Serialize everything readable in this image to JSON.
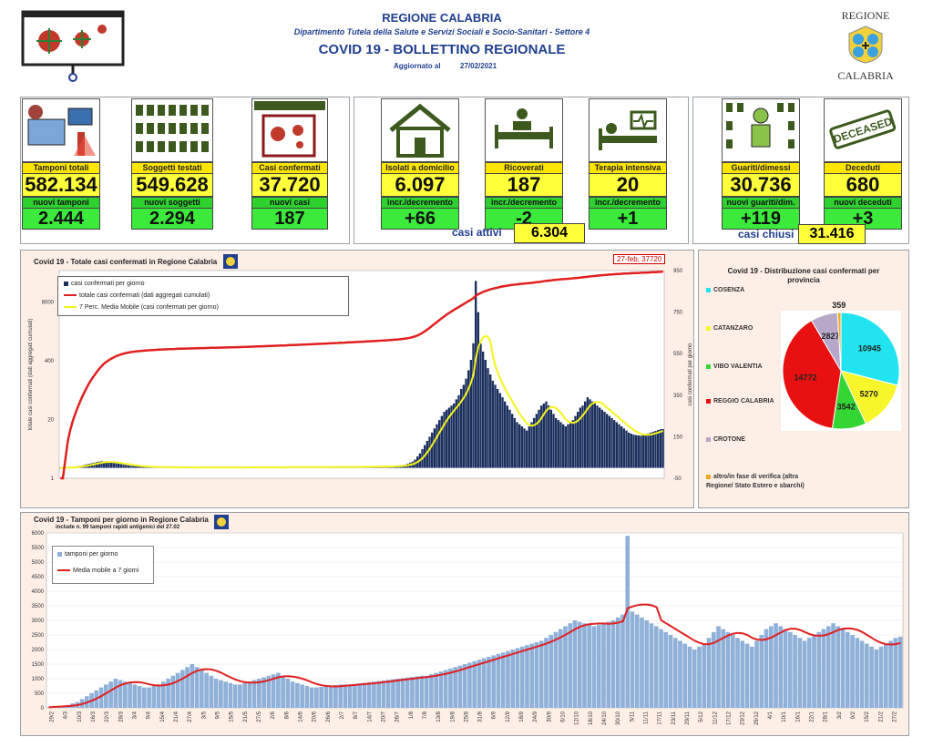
{
  "header": {
    "region": "REGIONE CALABRIA",
    "department": "Dipartimento Tutela della Salute e Servizi Sociali e Socio-Sanitari - Settore 4",
    "bulletin": "COVID 19 - BOLLETTINO REGIONALE",
    "updated_label": "Aggiornato al",
    "updated_date": "27/02/2021",
    "logo_top": "REGIONE",
    "logo_bottom": "CALABRIA"
  },
  "stats": {
    "tamponi": {
      "label": "Tamponi totali",
      "value": "582.134",
      "sub_label": "nuovi tamponi",
      "sub_value": "2.444"
    },
    "soggetti": {
      "label": "Soggetti testati",
      "value": "549.628",
      "sub_label": "nuovi soggetti testati",
      "sub_value": "2.294"
    },
    "casi": {
      "label": "Casi confermati",
      "value": "37.720",
      "sub_label": "nuovi casi",
      "sub_value": "187"
    },
    "isolati": {
      "label": "Isolati a domicilio",
      "value": "6.097",
      "sub_label": "incr./decremento",
      "sub_value": "+66"
    },
    "ricoverati": {
      "label": "Ricoverati",
      "value": "187",
      "sub_label": "incr./decremento",
      "sub_value": "-2"
    },
    "terapia": {
      "label": "Terapia intensiva",
      "value": "20",
      "sub_label": "incr./decremento",
      "sub_value": "+1"
    },
    "guariti": {
      "label": "Guariti/dimessi",
      "value": "30.736",
      "sub_label": "nuovi guariti/dim.",
      "sub_value": "+119"
    },
    "deceduti": {
      "label": "Deceduti",
      "value": "680",
      "sub_label": "nuovi deceduti",
      "sub_value": "+3"
    },
    "casi_attivi_label": "casi attivi",
    "casi_attivi_value": "6.304",
    "casi_chiusi_label": "casi chiusi",
    "casi_chiusi_value": "31.416",
    "deceased_stamp": "DECEASED"
  },
  "colors": {
    "navy": "#1b2f5e",
    "red": "#e02020",
    "yellow": "#f4f41a",
    "bluebar": "#8fb0d8",
    "pie_cosenza": "#22e3f0",
    "pie_catanzaro": "#f6f62a",
    "pie_vibo": "#33d633",
    "pie_reggio": "#e81010",
    "pie_crotone": "#b7a8c9",
    "pie_altro": "#f0a820"
  },
  "chart_data": [
    {
      "type": "bar",
      "title": "Covid 19 - Totale casi confermati in Regione Calabria",
      "annotation": "27-feb; 37720",
      "ylabel_left": "totale casi confermati (dati aggregati cumulati)",
      "ylabel_right": "casi confermati per giorno",
      "yticks_left": [
        "8000",
        "400",
        "20",
        "1"
      ],
      "yticks_right": [
        "950",
        "750",
        "550",
        "350",
        "150",
        "-50"
      ],
      "ylim_right": [
        -50,
        950
      ],
      "ylim_left": [
        1,
        40000
      ],
      "left_scale": "log",
      "series": [
        {
          "name": "casi confermati per giorno",
          "type": "bar"
        },
        {
          "name": "totale casi confermati (dati aggregati cumulati)",
          "type": "line"
        },
        {
          "name": "7 Perc. Media Mobile (casi confermati per giorno)",
          "type": "line"
        }
      ],
      "daily": [
        0,
        0,
        2,
        3,
        4,
        5,
        6,
        8,
        10,
        12,
        15,
        18,
        20,
        22,
        25,
        28,
        30,
        32,
        30,
        28,
        26,
        25,
        24,
        22,
        20,
        18,
        16,
        14,
        12,
        10,
        9,
        8,
        7,
        6,
        6,
        5,
        5,
        5,
        4,
        4,
        4,
        4,
        3,
        3,
        3,
        3,
        3,
        3,
        3,
        3,
        3,
        2,
        2,
        2,
        2,
        2,
        2,
        2,
        2,
        2,
        2,
        2,
        2,
        2,
        2,
        2,
        2,
        2,
        2,
        2,
        2,
        2,
        2,
        2,
        2,
        3,
        3,
        3,
        3,
        3,
        3,
        3,
        3,
        3,
        3,
        3,
        3,
        3,
        3,
        3,
        3,
        3,
        4,
        4,
        4,
        4,
        4,
        4,
        4,
        4,
        4,
        4,
        4,
        4,
        4,
        4,
        4,
        4,
        4,
        4,
        4,
        5,
        5,
        5,
        5,
        5,
        5,
        5,
        5,
        5,
        5,
        5,
        5,
        5,
        5,
        5,
        6,
        6,
        6,
        6,
        6,
        6,
        6,
        7,
        7,
        7,
        8,
        8,
        9,
        10,
        12,
        14,
        16,
        20,
        25,
        30,
        40,
        55,
        70,
        90,
        110,
        130,
        150,
        170,
        190,
        210,
        230,
        250,
        270,
        280,
        290,
        300,
        310,
        330,
        350,
        380,
        400,
        430,
        470,
        520,
        600,
        900,
        750,
        600,
        560,
        520,
        480,
        450,
        420,
        400,
        380,
        360,
        340,
        320,
        300,
        280,
        260,
        240,
        220,
        210,
        200,
        190,
        180,
        200,
        220,
        240,
        260,
        280,
        300,
        310,
        320,
        300,
        280,
        260,
        240,
        230,
        220,
        210,
        200,
        210,
        220,
        230,
        250,
        270,
        290,
        300,
        320,
        340,
        330,
        320,
        310,
        300,
        290,
        280,
        270,
        260,
        250,
        240,
        230,
        220,
        210,
        200,
        190,
        180,
        170,
        165,
        160,
        158,
        156,
        155,
        158,
        162,
        166,
        170,
        174,
        178,
        182,
        186,
        187
      ],
      "cumulative_end": 37720
    },
    {
      "type": "pie",
      "title": "Covid 19 - Distribuzione casi confermati per provincia",
      "categories": [
        "COSENZA",
        "CATANZARO",
        "VIBO VALENTIA",
        "REGGIO CALABRIA",
        "CROTONE",
        "altro/in fase di verifica (altra Regione/ Stato Estero e sbarchi)"
      ],
      "values": [
        10945,
        5270,
        3542,
        14772,
        2827,
        359
      ]
    },
    {
      "type": "bar",
      "title": "Covid 19 - Tamponi per giorno in Regione Calabria",
      "subtitle": "include n. 99 tamponi rapidi antigenici del 27.02",
      "yticks": [
        "6000",
        "5500",
        "5000",
        "4500",
        "4000",
        "3500",
        "3000",
        "2500",
        "2000",
        "1500",
        "1000",
        "500",
        "0"
      ],
      "ylim": [
        0,
        6000
      ],
      "series": [
        {
          "name": "tamponi per giorno",
          "type": "bar"
        },
        {
          "name": "Media mobile a 7 giorni",
          "type": "line"
        }
      ],
      "daily": [
        20,
        40,
        60,
        80,
        100,
        150,
        200,
        300,
        400,
        500,
        600,
        700,
        800,
        900,
        1000,
        950,
        900,
        850,
        800,
        750,
        700,
        700,
        750,
        800,
        900,
        1000,
        1100,
        1200,
        1300,
        1400,
        1500,
        1400,
        1300,
        1200,
        1100,
        1000,
        950,
        900,
        850,
        800,
        800,
        850,
        900,
        950,
        1000,
        1050,
        1100,
        1150,
        1200,
        1100,
        1000,
        900,
        850,
        800,
        750,
        700,
        700,
        720,
        740,
        760,
        780,
        800,
        800,
        800,
        820,
        840,
        860,
        880,
        900,
        920,
        940,
        960,
        980,
        1000,
        1020,
        1040,
        1060,
        1080,
        1100,
        1100,
        1150,
        1200,
        1250,
        1300,
        1350,
        1400,
        1450,
        1500,
        1550,
        1600,
        1650,
        1700,
        1750,
        1800,
        1850,
        1900,
        1950,
        2000,
        2050,
        2100,
        2150,
        2200,
        2250,
        2300,
        2400,
        2500,
        2600,
        2700,
        2800,
        2900,
        3000,
        2950,
        2900,
        2850,
        2800,
        2850,
        2900,
        2950,
        3000,
        3100,
        3200,
        5900,
        3300,
        3200,
        3100,
        3000,
        2900,
        2800,
        2700,
        2600,
        2500,
        2400,
        2300,
        2200,
        2100,
        2000,
        2100,
        2200,
        2400,
        2600,
        2800,
        2700,
        2600,
        2500,
        2400,
        2300,
        2200,
        2100,
        2300,
        2500,
        2700,
        2800,
        2900,
        2800,
        2700,
        2600,
        2500,
        2400,
        2300,
        2400,
        2500,
        2600,
        2700,
        2800,
        2900,
        2800,
        2700,
        2600,
        2500,
        2400,
        2300,
        2200,
        2100,
        2000,
        2100,
        2200,
        2300,
        2400,
        2444
      ],
      "xticks": [
        "29/2",
        "4/3",
        "10/3",
        "16/3",
        "22/3",
        "28/3",
        "3/4",
        "9/4",
        "15/4",
        "21/4",
        "27/4",
        "3/5",
        "9/5",
        "15/5",
        "21/5",
        "27/5",
        "2/6",
        "8/6",
        "14/6",
        "20/6",
        "26/6",
        "2/7",
        "8/7",
        "14/7",
        "20/7",
        "26/7",
        "1/8",
        "7/8",
        "13/8",
        "19/8",
        "25/8",
        "31/8",
        "6/9",
        "12/9",
        "18/9",
        "24/9",
        "30/9",
        "6/10",
        "12/10",
        "18/10",
        "24/10",
        "30/10",
        "5/11",
        "11/11",
        "17/11",
        "23/11",
        "29/11",
        "5/12",
        "11/12",
        "17/12",
        "23/12",
        "29/12",
        "4/1",
        "10/1",
        "16/1",
        "22/1",
        "28/1",
        "3/2",
        "9/2",
        "15/2",
        "21/2",
        "27/2"
      ]
    }
  ]
}
